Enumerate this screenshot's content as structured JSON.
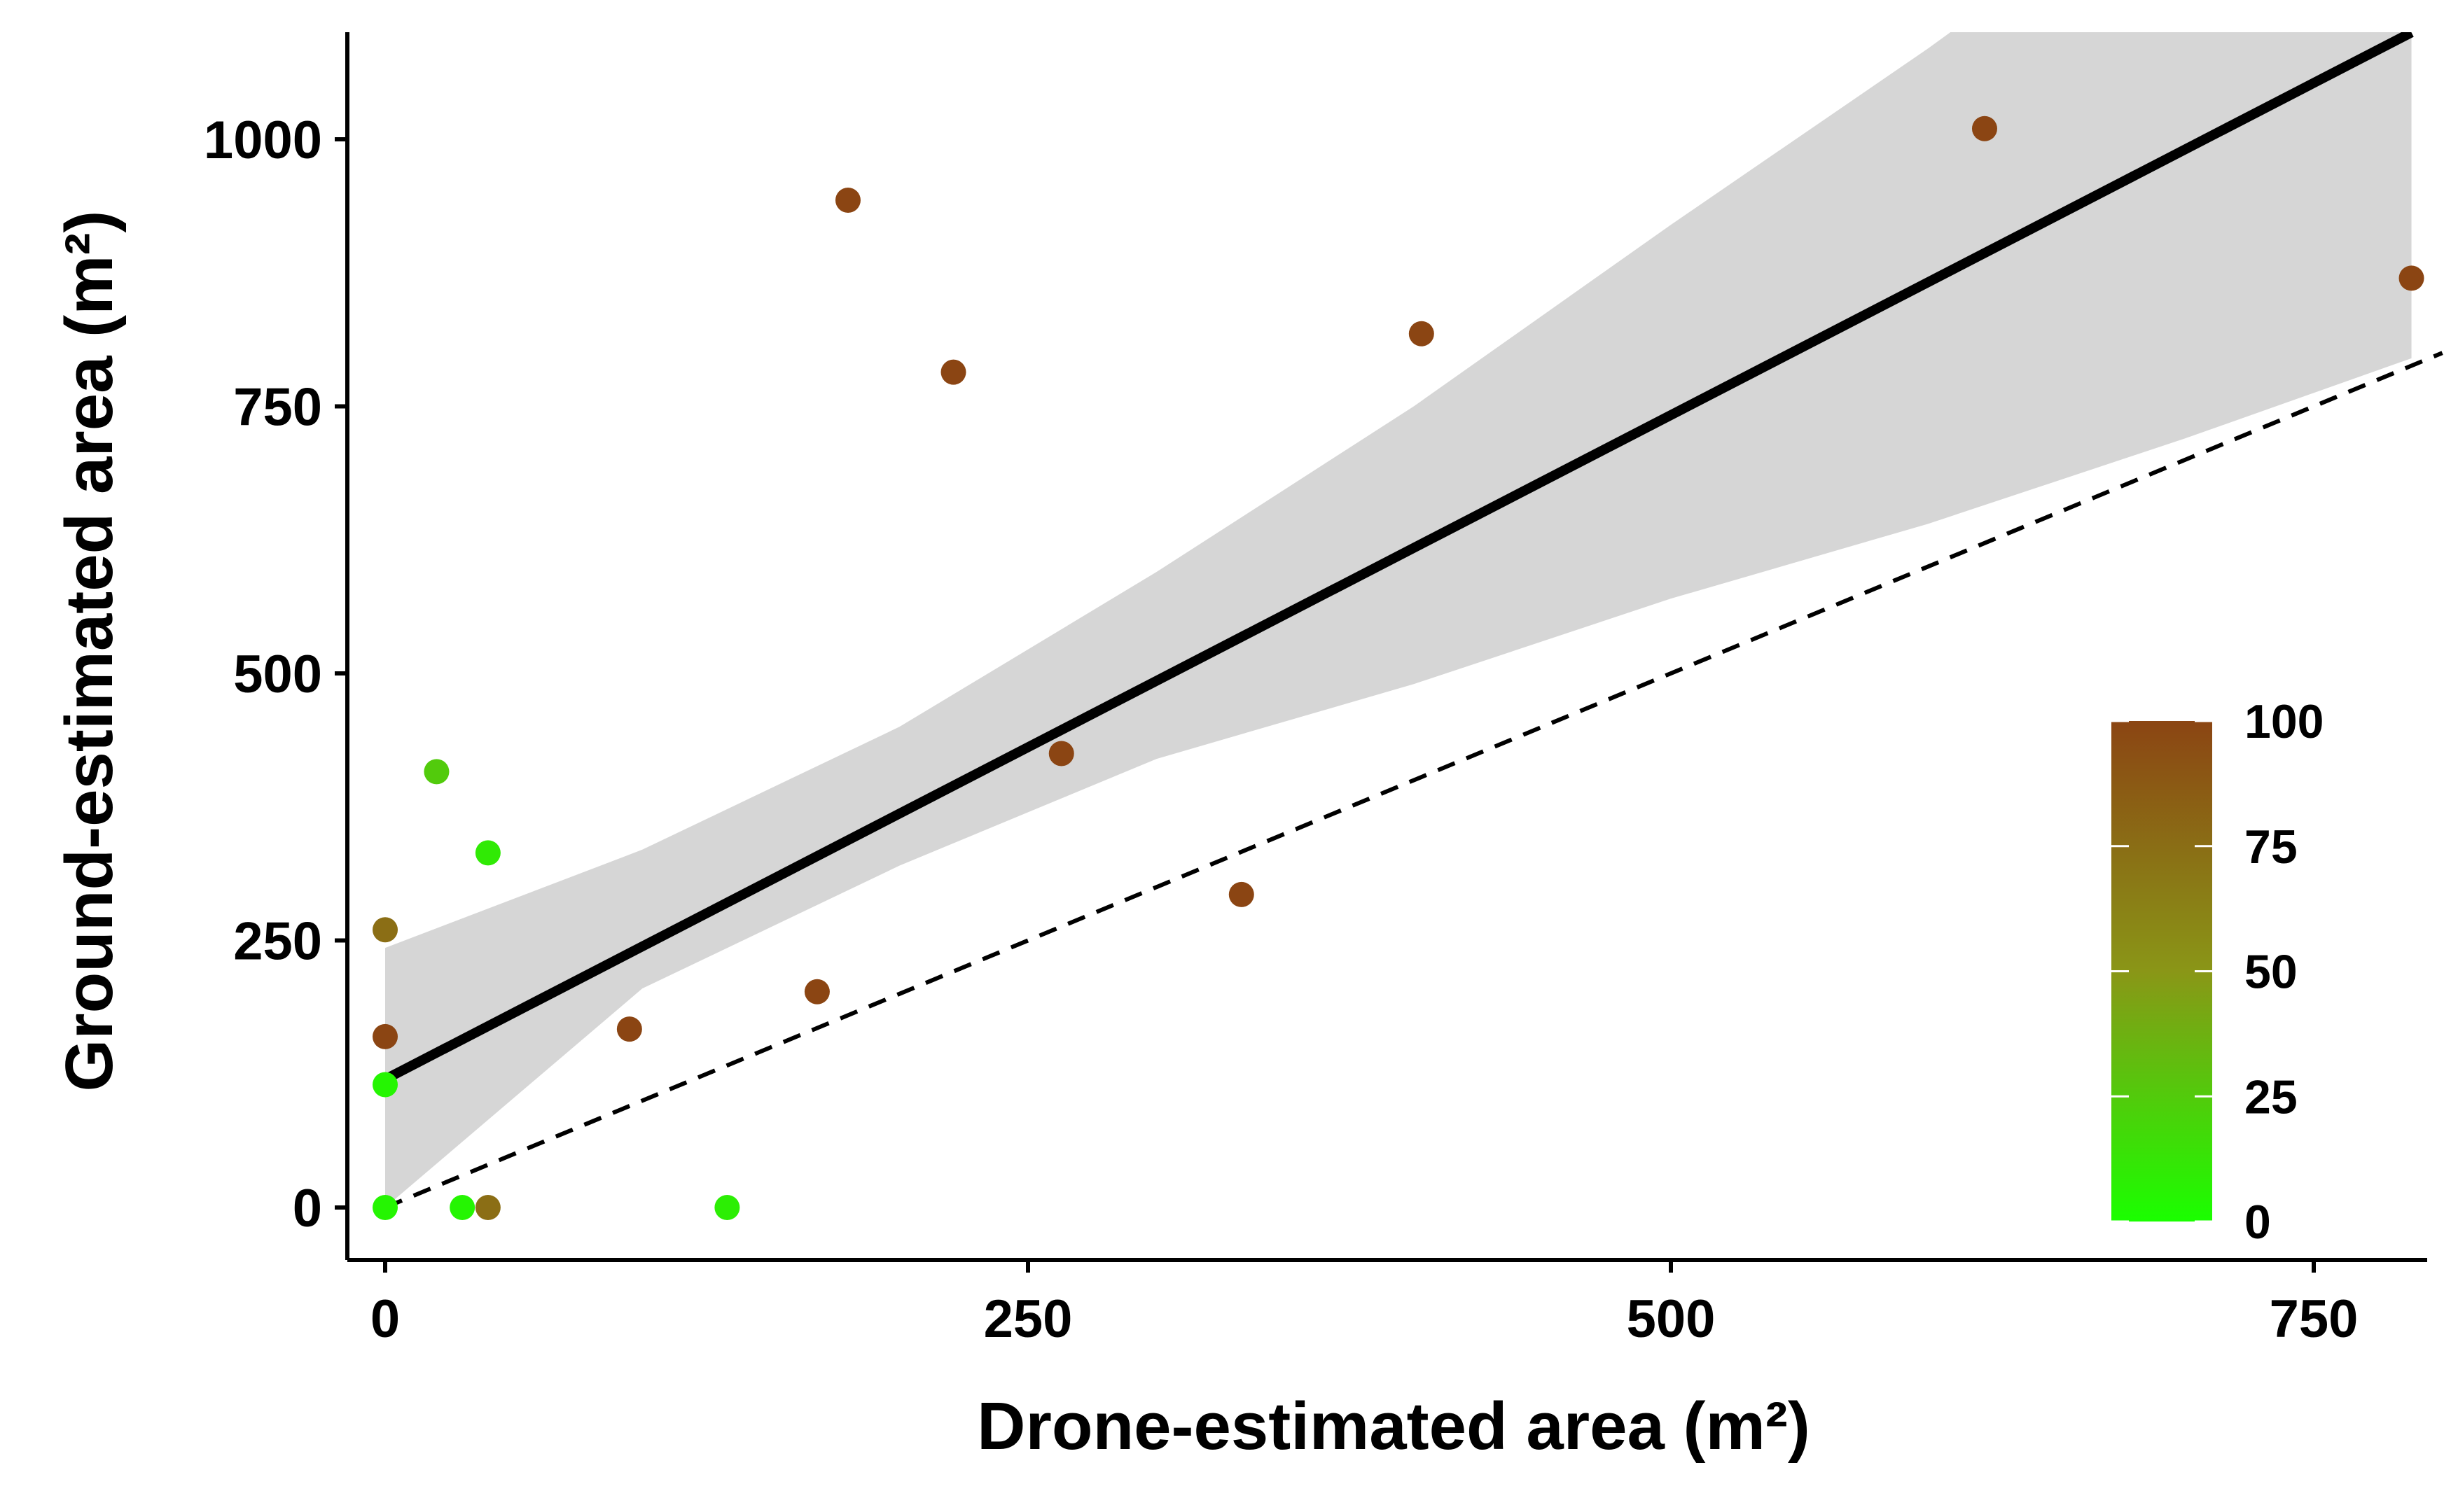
{
  "chart_data": {
    "type": "scatter",
    "xlabel": "Drone-estimated area (m²)",
    "ylabel": "Ground-estimated area (m²)",
    "xlim": [
      -30,
      800
    ],
    "ylim": [
      -50,
      1100
    ],
    "x_ticks": [
      0,
      250,
      500,
      750
    ],
    "y_ticks": [
      0,
      250,
      500,
      750,
      1000
    ],
    "grid": false,
    "points": [
      {
        "x": 0,
        "y": 0,
        "c": 5
      },
      {
        "x": 0,
        "y": 115,
        "c": 5
      },
      {
        "x": 0,
        "y": 160,
        "c": 100
      },
      {
        "x": 0,
        "y": 260,
        "c": 75
      },
      {
        "x": 20,
        "y": 408,
        "c": 25
      },
      {
        "x": 30,
        "y": 0,
        "c": 5
      },
      {
        "x": 40,
        "y": 0,
        "c": 75
      },
      {
        "x": 40,
        "y": 332,
        "c": 10
      },
      {
        "x": 95,
        "y": 167,
        "c": 100
      },
      {
        "x": 133,
        "y": 0,
        "c": 8
      },
      {
        "x": 168,
        "y": 202,
        "c": 100
      },
      {
        "x": 180,
        "y": 943,
        "c": 100
      },
      {
        "x": 221,
        "y": 782,
        "c": 100
      },
      {
        "x": 263,
        "y": 425,
        "c": 100
      },
      {
        "x": 333,
        "y": 293,
        "c": 100
      },
      {
        "x": 403,
        "y": 818,
        "c": 100
      },
      {
        "x": 622,
        "y": 1010,
        "c": 100
      },
      {
        "x": 788,
        "y": 870,
        "c": 100
      }
    ],
    "fit_line": {
      "x": [
        0,
        788
      ],
      "y": [
        120,
        1100
      ]
    },
    "confidence_band": {
      "x": [
        0,
        100,
        200,
        300,
        400,
        500,
        600,
        700,
        788
      ],
      "upper": [
        243,
        335,
        450,
        595,
        750,
        920,
        1085,
        1260,
        1420
      ],
      "lower": [
        0,
        205,
        320,
        420,
        490,
        570,
        640,
        720,
        795
      ]
    },
    "reference_line": {
      "x": [
        0,
        800
      ],
      "y": [
        0,
        800
      ]
    },
    "colorbar": {
      "min": 0,
      "max": 100,
      "ticks": [
        0,
        25,
        50,
        75,
        100
      ],
      "low_color": "#1aff00",
      "mid_color": "#8a9617",
      "high_color": "#8b4513"
    },
    "fit_color": "#000000",
    "band_color": "#d6d6d6"
  }
}
